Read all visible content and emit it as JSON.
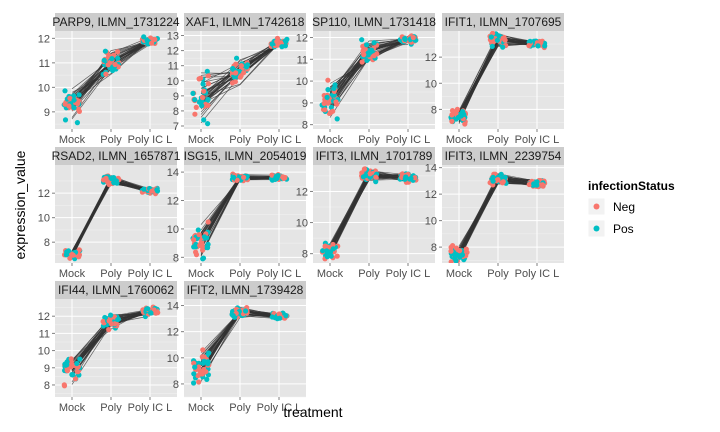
{
  "chart_data": {
    "type": "line",
    "xlabel": "treatment",
    "ylabel": "expression_value",
    "categories": [
      "Mock",
      "Poly",
      "Poly IC L"
    ],
    "legend": {
      "title": "infectionStatus",
      "position": "right",
      "entries": [
        {
          "label": "Neg",
          "color": "#f8766d"
        },
        {
          "label": "Pos",
          "color": "#00bfc4"
        }
      ]
    },
    "panel_background": "#e5e5e5",
    "strip_background": "#cccccc",
    "line_color": "#333333",
    "panels": [
      {
        "title": "PARP9, ILMN_1731224",
        "ylim": [
          8.3,
          12.3
        ],
        "yticks": [
          9,
          10,
          11,
          12
        ],
        "means": [
          9.3,
          11.0,
          11.9
        ],
        "spread": [
          0.5,
          0.4,
          0.15
        ]
      },
      {
        "title": "XAF1, ILMN_1742618",
        "ylim": [
          6.8,
          13.3
        ],
        "yticks": [
          7,
          8,
          9,
          10,
          11,
          12,
          13
        ],
        "means": [
          9.0,
          10.6,
          12.5
        ],
        "spread": [
          1.1,
          0.6,
          0.2
        ]
      },
      {
        "title": "SP110, ILMN_1731418",
        "ylim": [
          7.8,
          12.3
        ],
        "yticks": [
          8,
          9,
          10,
          11,
          12
        ],
        "means": [
          9.3,
          11.3,
          11.9
        ],
        "spread": [
          0.7,
          0.4,
          0.15
        ]
      },
      {
        "title": "IFIT1, ILMN_1707695",
        "ylim": [
          6.5,
          14.0
        ],
        "yticks": [
          8,
          10,
          12
        ],
        "means": [
          7.6,
          13.3,
          13.0
        ],
        "spread": [
          0.5,
          0.4,
          0.2
        ]
      },
      {
        "title": "RSAD2, ILMN_1657871",
        "ylim": [
          6.3,
          14.3
        ],
        "yticks": [
          8,
          10,
          12
        ],
        "means": [
          7.0,
          13.0,
          12.2
        ],
        "spread": [
          0.3,
          0.3,
          0.2
        ]
      },
      {
        "title": "ISG15, ILMN_2054019",
        "ylim": [
          7.6,
          14.5
        ],
        "yticks": [
          8,
          10,
          12,
          14
        ],
        "means": [
          9.0,
          13.6,
          13.6
        ],
        "spread": [
          0.9,
          0.2,
          0.15
        ]
      },
      {
        "title": "IFIT3, ILMN_1701789",
        "ylim": [
          7.4,
          13.7
        ],
        "yticks": [
          8,
          10,
          12
        ],
        "means": [
          8.2,
          13.0,
          12.9
        ],
        "spread": [
          0.4,
          0.3,
          0.2
        ]
      },
      {
        "title": "IFIT3, ILMN_2239754",
        "ylim": [
          6.8,
          14.2
        ],
        "yticks": [
          8,
          10,
          12,
          14
        ],
        "means": [
          7.5,
          13.2,
          12.8
        ],
        "spread": [
          0.5,
          0.3,
          0.2
        ]
      },
      {
        "title": "IFI44, ILMN_1760062",
        "ylim": [
          7.3,
          13.0
        ],
        "yticks": [
          8,
          9,
          10,
          11,
          12
        ],
        "means": [
          8.9,
          11.7,
          12.3
        ],
        "spread": [
          0.6,
          0.4,
          0.2
        ]
      },
      {
        "title": "IFIT2, ILMN_1739428",
        "ylim": [
          7.0,
          14.5
        ],
        "yticks": [
          8,
          10,
          12,
          14
        ],
        "means": [
          9.3,
          13.5,
          13.2
        ],
        "spread": [
          0.9,
          0.3,
          0.2
        ]
      }
    ]
  }
}
